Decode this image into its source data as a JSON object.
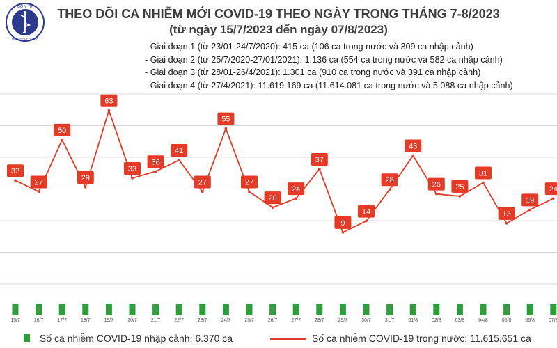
{
  "logo": {
    "arc_top": "BỘ Y TẾ",
    "arc_bottom": "MINISTRY OF HEALTH"
  },
  "title": {
    "line1": "THEO DÕI CA NHIỄM MỚI COVID-19 THEO NGÀY TRONG THÁNG 7-8/2023",
    "line2": "(từ ngày 15/7/2023 đến ngày 07/8/2023)"
  },
  "phases": [
    "- Giai đoạn 1 (từ 23/01-24/7/2020): 415 ca (106 ca trong nước và 309 ca nhập cảnh)",
    "- Giai đoạn 2 (từ 25/7/2020-27/01/2021): 1.136 ca (554 ca trong nước và 582 ca nhập cảnh)",
    "- Giai đoạn 3 (từ 28/01-26/4/2021): 1.301 ca (910 ca trong nước và 391 ca nhập cảnh)",
    "- Giai đoạn 4 (từ 27/4/2021): 11.619.169 ca (11.614.081 ca trong nước và 5.088 ca nhập cảnh)"
  ],
  "legend": {
    "imported": "Số ca nhiễm COVID-19 nhập cảnh: 6.370 ca",
    "domestic": "Số ca nhiễm COVID-19 trong nước: 11.615.651 ca"
  },
  "colors": {
    "line": "#e53a26",
    "bar": "#2e9e3a",
    "label_bg": "#e53a26",
    "label_text": "#ffffff",
    "grid": "#d9d9d9"
  },
  "chart_data": {
    "type": "line",
    "categories": [
      "15/7",
      "16/7",
      "17/7",
      "18/7",
      "19/7",
      "20/7",
      "21/7",
      "22/7",
      "23/7",
      "24/7",
      "25/7",
      "26/7",
      "27/7",
      "28/7",
      "29/7",
      "30/7",
      "31/7",
      "01/8",
      "02/8",
      "03/8",
      "04/8",
      "05/8",
      "06/8",
      "07/8"
    ],
    "series": [
      {
        "name": "Số ca nhiễm COVID-19 trong nước: 11.615.651 ca",
        "type": "line",
        "values": [
          32,
          27,
          50,
          29,
          63,
          33,
          36,
          41,
          27,
          55,
          27,
          20,
          24,
          37,
          9,
          14,
          28,
          43,
          26,
          25,
          31,
          13,
          19,
          24
        ]
      },
      {
        "name": "Số ca nhiễm COVID-19 nhập cảnh: 6.370 ca",
        "type": "bar",
        "values": [
          0,
          0,
          0,
          0,
          0,
          0,
          0,
          0,
          0,
          0,
          0,
          0,
          0,
          0,
          0,
          0,
          0,
          0,
          0,
          0,
          0,
          0,
          0,
          0
        ],
        "bar_labels": [
          "-",
          "-",
          "-",
          "-",
          "-",
          "-",
          "-",
          "-",
          "-",
          "-",
          "-",
          "-",
          "-",
          "-",
          "-",
          "-",
          "-",
          "-",
          "-",
          "-",
          "-",
          "-",
          "-",
          "-"
        ]
      }
    ],
    "ylim": [
      0,
      70
    ],
    "grid": true,
    "legend_position": "bottom"
  }
}
